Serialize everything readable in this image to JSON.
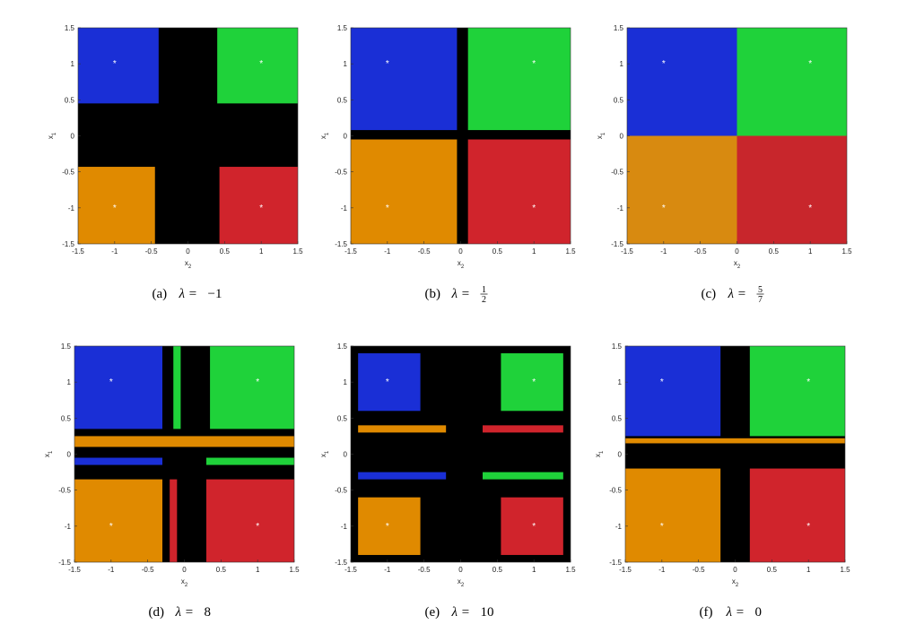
{
  "chart_data": [
    {
      "type": "basin",
      "xlim": [
        -1.5,
        1.5
      ],
      "ylim": [
        -1.5,
        1.5
      ],
      "xticks": [
        -1.5,
        -1,
        -0.5,
        0,
        0.5,
        1,
        1.5
      ],
      "yticks": [
        -1.5,
        -1,
        -0.5,
        0,
        0.5,
        1,
        1.5
      ],
      "xlabel": "x",
      "xlabel_sub": "2",
      "ylabel": "x",
      "ylabel_sub": "1",
      "background": "#000000",
      "regions": [
        {
          "x": [
            -1.5,
            -0.4
          ],
          "y": [
            0.45,
            1.5
          ],
          "color": "#1a2fd6"
        },
        {
          "x": [
            0.4,
            1.5
          ],
          "y": [
            0.45,
            1.5
          ],
          "color": "#1fd23a"
        },
        {
          "x": [
            -1.5,
            -0.45
          ],
          "y": [
            -1.5,
            -0.43
          ],
          "color": "#e08a00"
        },
        {
          "x": [
            0.43,
            1.5
          ],
          "y": [
            -1.5,
            -0.43
          ],
          "color": "#d0242c"
        }
      ],
      "points": {
        "x": [
          -1,
          1,
          -1,
          1
        ],
        "y": [
          1,
          1,
          -1,
          -1
        ]
      },
      "caption": {
        "label": "(a)",
        "param": "λ =",
        "value": "−1"
      }
    },
    {
      "type": "basin",
      "xlim": [
        -1.5,
        1.5
      ],
      "ylim": [
        -1.5,
        1.5
      ],
      "xticks": [
        -1.5,
        -1,
        -0.5,
        0,
        0.5,
        1,
        1.5
      ],
      "yticks": [
        -1.5,
        -1,
        -0.5,
        0,
        0.5,
        1,
        1.5
      ],
      "xlabel": "x",
      "xlabel_sub": "2",
      "ylabel": "x",
      "ylabel_sub": "1",
      "background": "#000000",
      "regions": [
        {
          "x": [
            -1.5,
            -0.05
          ],
          "y": [
            0.08,
            1.5
          ],
          "color": "#1a2fd6"
        },
        {
          "x": [
            0.1,
            1.5
          ],
          "y": [
            0.08,
            1.5
          ],
          "color": "#1fd23a"
        },
        {
          "x": [
            -1.5,
            -0.05
          ],
          "y": [
            -1.5,
            -0.05
          ],
          "color": "#e08a00"
        },
        {
          "x": [
            0.1,
            1.5
          ],
          "y": [
            -1.5,
            -0.05
          ],
          "color": "#d0242c"
        }
      ],
      "points": {
        "x": [
          -1,
          1,
          -1,
          1
        ],
        "y": [
          1,
          1,
          -1,
          -1
        ]
      },
      "caption": {
        "label": "(b)",
        "param": "λ =",
        "value": {
          "num": "1",
          "den": "2"
        }
      }
    },
    {
      "type": "basin",
      "xlim": [
        -1.5,
        1.5
      ],
      "ylim": [
        -1.5,
        1.5
      ],
      "xticks": [
        -1.5,
        -1,
        -0.5,
        0,
        0.5,
        1,
        1.5
      ],
      "yticks": [
        -1.5,
        -1,
        -0.5,
        0,
        0.5,
        1,
        1.5
      ],
      "xlabel": "x",
      "xlabel_sub": "2",
      "ylabel": "x",
      "ylabel_sub": "1",
      "background": "#000000",
      "regions": [
        {
          "x": [
            -1.5,
            0
          ],
          "y": [
            0,
            1.5
          ],
          "color": "#1a2fd6"
        },
        {
          "x": [
            0,
            1.5
          ],
          "y": [
            0,
            1.5
          ],
          "color": "#1fd23a"
        },
        {
          "x": [
            -1.5,
            0
          ],
          "y": [
            -1.5,
            0
          ],
          "color": "#d88a10"
        },
        {
          "x": [
            0,
            1.5
          ],
          "y": [
            -1.5,
            0
          ],
          "color": "#c8262c"
        }
      ],
      "points": {
        "x": [
          -1,
          1,
          -1,
          1
        ],
        "y": [
          1,
          1,
          -1,
          -1
        ]
      },
      "caption": {
        "label": "(c)",
        "param": "λ =",
        "value": {
          "num": "5",
          "den": "7"
        }
      }
    },
    {
      "type": "basin",
      "xlim": [
        -1.5,
        1.5
      ],
      "ylim": [
        -1.5,
        1.5
      ],
      "xticks": [
        -1.5,
        -1,
        -0.5,
        0,
        0.5,
        1,
        1.5
      ],
      "yticks": [
        -1.5,
        -1,
        -0.5,
        0,
        0.5,
        1,
        1.5
      ],
      "xlabel": "x",
      "xlabel_sub": "2",
      "ylabel": "x",
      "ylabel_sub": "1",
      "background": "#000000",
      "regions": [
        {
          "x": [
            -1.5,
            -0.3
          ],
          "y": [
            0.35,
            1.5
          ],
          "color": "#1a2fd6"
        },
        {
          "x": [
            0.35,
            1.5
          ],
          "y": [
            0.35,
            1.5
          ],
          "color": "#1fd23a"
        },
        {
          "x": [
            -1.5,
            -0.3
          ],
          "y": [
            -1.5,
            -0.35
          ],
          "color": "#e08a00"
        },
        {
          "x": [
            0.3,
            1.5
          ],
          "y": [
            -1.5,
            -0.35
          ],
          "color": "#d0242c"
        },
        {
          "x": [
            -1.5,
            1.5
          ],
          "y": [
            0.1,
            0.25
          ],
          "color": "#e08a00"
        },
        {
          "x": [
            -1.5,
            -0.3
          ],
          "y": [
            -0.15,
            -0.05
          ],
          "color": "#1a2fd6"
        },
        {
          "x": [
            0.3,
            1.5
          ],
          "y": [
            -0.15,
            -0.05
          ],
          "color": "#1fd23a"
        },
        {
          "x": [
            -0.2,
            -0.1
          ],
          "y": [
            -1.5,
            -0.35
          ],
          "color": "#d0242c"
        },
        {
          "x": [
            -0.15,
            -0.05
          ],
          "y": [
            0.35,
            1.5
          ],
          "color": "#1fd23a"
        }
      ],
      "points": {
        "x": [
          -1,
          1,
          -1,
          1
        ],
        "y": [
          1,
          1,
          -1,
          -1
        ]
      },
      "caption": {
        "label": "(d)",
        "param": "λ =",
        "value": "8"
      }
    },
    {
      "type": "basin",
      "xlim": [
        -1.5,
        1.5
      ],
      "ylim": [
        -1.5,
        1.5
      ],
      "xticks": [
        -1.5,
        -1,
        -0.5,
        0,
        0.5,
        1,
        1.5
      ],
      "yticks": [
        -1.5,
        -1,
        -0.5,
        0,
        0.5,
        1,
        1.5
      ],
      "xlabel": "x",
      "xlabel_sub": "2",
      "ylabel": "x",
      "ylabel_sub": "1",
      "background": "#000000",
      "regions": [
        {
          "x": [
            -1.4,
            -0.55
          ],
          "y": [
            0.6,
            1.4
          ],
          "color": "#1a2fd6"
        },
        {
          "x": [
            0.55,
            1.4
          ],
          "y": [
            0.6,
            1.4
          ],
          "color": "#1fd23a"
        },
        {
          "x": [
            -1.4,
            -0.55
          ],
          "y": [
            -1.4,
            -0.6
          ],
          "color": "#e08a00"
        },
        {
          "x": [
            0.55,
            1.4
          ],
          "y": [
            -1.4,
            -0.6
          ],
          "color": "#d0242c"
        },
        {
          "x": [
            -1.4,
            -0.2
          ],
          "y": [
            0.3,
            0.4
          ],
          "color": "#e08a00"
        },
        {
          "x": [
            0.3,
            1.4
          ],
          "y": [
            0.3,
            0.4
          ],
          "color": "#d0242c"
        },
        {
          "x": [
            -1.4,
            -0.2
          ],
          "y": [
            -0.35,
            -0.25
          ],
          "color": "#1a2fd6"
        },
        {
          "x": [
            0.3,
            1.4
          ],
          "y": [
            -0.35,
            -0.25
          ],
          "color": "#1fd23a"
        }
      ],
      "points": {
        "x": [
          -1,
          1,
          -1,
          1
        ],
        "y": [
          1,
          1,
          -1,
          -1
        ]
      },
      "caption": {
        "label": "(e)",
        "param": "λ =",
        "value": "10"
      }
    },
    {
      "type": "basin",
      "xlim": [
        -1.5,
        1.5
      ],
      "ylim": [
        -1.5,
        1.5
      ],
      "xticks": [
        -1.5,
        -1,
        -0.5,
        0,
        0.5,
        1,
        1.5
      ],
      "yticks": [
        -1.5,
        -1,
        -0.5,
        0,
        0.5,
        1,
        1.5
      ],
      "xlabel": "x",
      "xlabel_sub": "2",
      "ylabel": "x",
      "ylabel_sub": "1",
      "background": "#000000",
      "regions": [
        {
          "x": [
            -1.5,
            -0.2
          ],
          "y": [
            0.25,
            1.5
          ],
          "color": "#1a2fd6"
        },
        {
          "x": [
            0.2,
            1.5
          ],
          "y": [
            0.25,
            1.5
          ],
          "color": "#1fd23a"
        },
        {
          "x": [
            -1.5,
            -0.2
          ],
          "y": [
            -1.5,
            -0.2
          ],
          "color": "#e08a00"
        },
        {
          "x": [
            0.2,
            1.5
          ],
          "y": [
            -1.5,
            -0.2
          ],
          "color": "#d0242c"
        },
        {
          "x": [
            -1.5,
            1.5
          ],
          "y": [
            0.15,
            0.22
          ],
          "color": "#e08a00"
        }
      ],
      "points": {
        "x": [
          -1,
          1,
          -1,
          1
        ],
        "y": [
          1,
          1,
          -1,
          -1
        ]
      },
      "caption": {
        "label": "(f)",
        "param": "λ =",
        "value": "0"
      }
    }
  ]
}
